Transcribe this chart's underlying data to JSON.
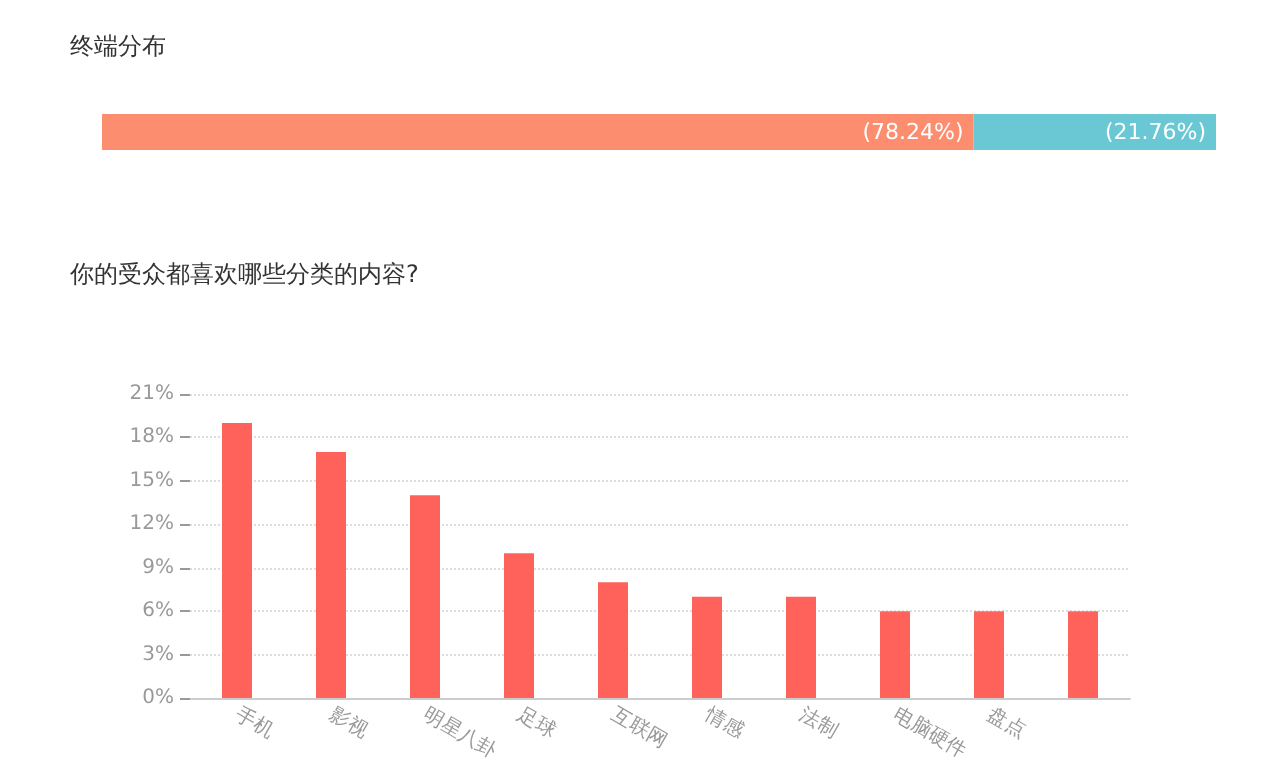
{
  "chart_data": [
    {
      "type": "bar",
      "title": "终端分布",
      "orientation": "horizontal",
      "stacked": true,
      "categories": [
        null
      ],
      "tick_labels": false,
      "grid": false,
      "series": [
        {
          "color": "#fd8d6f",
          "values": [
            78.24
          ],
          "value_labels": [
            "(78.24%)"
          ]
        },
        {
          "color": "#6ac8d5",
          "values": [
            21.76
          ],
          "value_labels": [
            "(21.76%)"
          ]
        }
      ]
    },
    {
      "type": "bar",
      "title": "你的受众都喜欢哪些分类的内容?",
      "categories": [
        "手机",
        "影视",
        "明星八卦",
        "足球",
        "互联网",
        "情感",
        "法制",
        "电脑硬件",
        "盘点",
        null
      ],
      "ylim": [
        0,
        21
      ],
      "yticks": [
        {
          "value": 0,
          "label": "0%"
        },
        {
          "value": 3,
          "label": "3%"
        },
        {
          "value": 6,
          "label": "6%"
        },
        {
          "value": 9,
          "label": "9%"
        },
        {
          "value": 12,
          "label": "12%"
        },
        {
          "value": 15,
          "label": "15%"
        },
        {
          "value": 18,
          "label": "18%"
        },
        {
          "value": 21,
          "label": "21%"
        }
      ],
      "grid": "y",
      "series": [
        {
          "color": "#ff625b",
          "values": [
            19,
            17,
            14,
            10,
            8,
            7,
            7,
            6,
            6,
            6
          ]
        }
      ]
    }
  ]
}
